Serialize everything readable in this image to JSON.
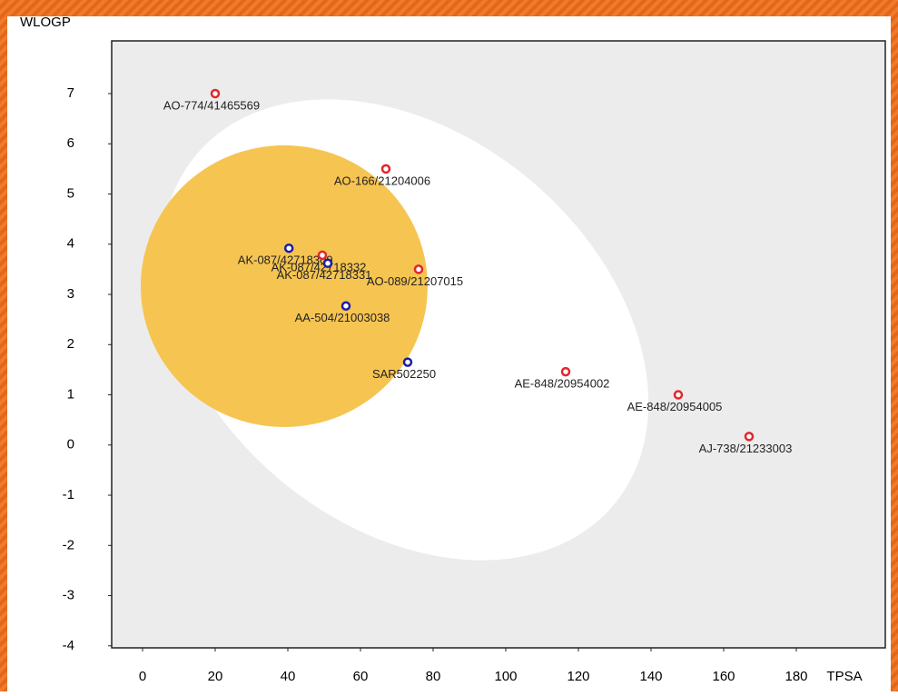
{
  "chart_data": {
    "type": "scatter",
    "x_label": "TPSA",
    "y_label": "WLOGP",
    "x": [
      20,
      67,
      40.3,
      49.5,
      51,
      76,
      56,
      73,
      116.5,
      147.5,
      167
    ],
    "values": [
      7.0,
      5.5,
      3.92,
      3.78,
      3.62,
      3.5,
      2.77,
      1.65,
      1.46,
      1.0,
      0.17
    ],
    "labels": [
      "AO-774/41465569",
      "AO-166/21204006",
      "AK-087/42718309",
      "AK-087/42718332",
      "AK-087/42718331",
      "AO-089/21207015",
      "AA-504/21003038",
      "SAR502250",
      "AE-848/20954002",
      "AE-848/20954005",
      "AJ-738/21233003"
    ],
    "colors": [
      "#e3262d",
      "#e3262d",
      "#1b1fa6",
      "#e3262d",
      "#1b1fa6",
      "#e3262d",
      "#1b1fa6",
      "#1b1fa6",
      "#e3262d",
      "#e3262d",
      "#e3262d"
    ],
    "xlim": [
      -8.5,
      204.5
    ],
    "ylim": [
      -4.04,
      8.05
    ],
    "xticks": [
      0,
      20,
      40,
      60,
      80,
      100,
      120,
      140,
      160,
      180
    ],
    "yticks": [
      -4,
      -3,
      -2,
      -1,
      0,
      1,
      2,
      3,
      4,
      5,
      6,
      7
    ]
  }
}
